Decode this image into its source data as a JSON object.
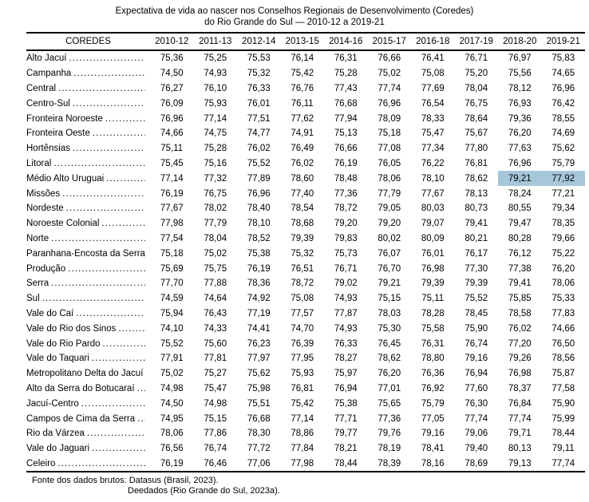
{
  "title": {
    "line1": "Expectativa de vida ao nascer nos Conselhos Regionais de Desenvolvimento (Coredes)",
    "line2": "do Rio Grande do Sul — 2010-12 a 2019-21"
  },
  "table": {
    "header": [
      "COREDES",
      "2010-12",
      "2011-13",
      "2012-14",
      "2013-15",
      "2014-16",
      "2015-17",
      "2016-18",
      "2017-19",
      "2018-20",
      "2019-21"
    ],
    "rows": [
      {
        "label": "Alto Jacuí",
        "values": [
          "75,36",
          "75,25",
          "75,53",
          "76,14",
          "76,31",
          "76,66",
          "76,41",
          "76,71",
          "76,97",
          "75,83"
        ]
      },
      {
        "label": "Campanha",
        "values": [
          "74,50",
          "74,93",
          "75,32",
          "75,42",
          "75,28",
          "75,02",
          "75,08",
          "75,20",
          "75,56",
          "74,65"
        ]
      },
      {
        "label": "Central",
        "values": [
          "76,27",
          "76,10",
          "76,33",
          "76,76",
          "77,43",
          "77,74",
          "77,69",
          "78,04",
          "78,12",
          "76,96"
        ]
      },
      {
        "label": "Centro-Sul",
        "values": [
          "76,09",
          "75,93",
          "76,01",
          "76,11",
          "76,68",
          "76,96",
          "76,54",
          "76,75",
          "76,93",
          "76,42"
        ]
      },
      {
        "label": "Fronteira Noroeste",
        "values": [
          "76,96",
          "77,14",
          "77,51",
          "77,62",
          "77,94",
          "78,09",
          "78,33",
          "78,64",
          "79,36",
          "78,55"
        ]
      },
      {
        "label": "Fronteira Oeste",
        "values": [
          "74,66",
          "74,75",
          "74,77",
          "74,91",
          "75,13",
          "75,18",
          "75,47",
          "75,67",
          "76,20",
          "74,69"
        ]
      },
      {
        "label": "Hortênsias",
        "values": [
          "75,11",
          "75,28",
          "76,02",
          "76,49",
          "76,66",
          "77,08",
          "77,34",
          "77,80",
          "77,63",
          "75,62"
        ]
      },
      {
        "label": "Litoral",
        "values": [
          "75,45",
          "75,16",
          "75,52",
          "76,02",
          "76,19",
          "76,05",
          "76,22",
          "76,81",
          "76,96",
          "75,79"
        ]
      },
      {
        "label": "Médio Alto Uruguai",
        "values": [
          "77,14",
          "77,32",
          "77,89",
          "78,60",
          "78,48",
          "78,06",
          "78,10",
          "78,62",
          "79,21",
          "77,92"
        ]
      },
      {
        "label": "Missões",
        "values": [
          "76,19",
          "76,75",
          "76,96",
          "77,40",
          "77,36",
          "77,79",
          "77,67",
          "78,13",
          "78,24",
          "77,21"
        ]
      },
      {
        "label": "Nordeste",
        "values": [
          "77,67",
          "78,02",
          "78,40",
          "78,54",
          "78,72",
          "79,05",
          "80,03",
          "80,73",
          "80,55",
          "79,34"
        ]
      },
      {
        "label": "Noroeste Colonial",
        "values": [
          "77,98",
          "77,79",
          "78,10",
          "78,68",
          "79,20",
          "79,20",
          "79,07",
          "79,41",
          "79,47",
          "78,35"
        ]
      },
      {
        "label": "Norte",
        "values": [
          "77,54",
          "78,04",
          "78,52",
          "79,39",
          "79,83",
          "80,02",
          "80,09",
          "80,21",
          "80,28",
          "79,66"
        ]
      },
      {
        "label": "Paranhana-Encosta da Serra",
        "values": [
          "75,18",
          "75,02",
          "75,38",
          "75,32",
          "75,73",
          "76,07",
          "76,01",
          "76,17",
          "76,12",
          "75,22"
        ]
      },
      {
        "label": "Produção",
        "values": [
          "75,69",
          "75,75",
          "76,19",
          "76,51",
          "76,71",
          "76,70",
          "76,98",
          "77,30",
          "77,38",
          "76,20"
        ]
      },
      {
        "label": "Serra",
        "values": [
          "77,70",
          "77,88",
          "78,36",
          "78,72",
          "79,02",
          "79,21",
          "79,39",
          "79,39",
          "79,41",
          "78,06"
        ]
      },
      {
        "label": "Sul",
        "values": [
          "74,59",
          "74,64",
          "74,92",
          "75,08",
          "74,93",
          "75,15",
          "75,11",
          "75,52",
          "75,85",
          "75,33"
        ]
      },
      {
        "label": "Vale do Caí",
        "values": [
          "75,94",
          "76,43",
          "77,19",
          "77,57",
          "77,87",
          "78,03",
          "78,28",
          "78,45",
          "78,58",
          "77,83"
        ]
      },
      {
        "label": "Vale do Rio dos Sinos",
        "values": [
          "74,10",
          "74,33",
          "74,41",
          "74,70",
          "74,93",
          "75,30",
          "75,58",
          "75,90",
          "76,02",
          "74,66"
        ]
      },
      {
        "label": "Vale do Rio Pardo",
        "values": [
          "75,52",
          "75,60",
          "76,23",
          "76,39",
          "76,33",
          "76,45",
          "76,31",
          "76,74",
          "77,20",
          "76,50"
        ]
      },
      {
        "label": "Vale do Taquari",
        "values": [
          "77,91",
          "77,81",
          "77,97",
          "77,95",
          "78,27",
          "78,62",
          "78,80",
          "79,16",
          "79,26",
          "78,56"
        ]
      },
      {
        "label": "Metropolitano Delta do Jacuí",
        "values": [
          "75,02",
          "75,27",
          "75,62",
          "75,93",
          "75,97",
          "76,20",
          "76,36",
          "76,94",
          "76,98",
          "75,87"
        ]
      },
      {
        "label": "Alto da Serra do Botucaraí",
        "values": [
          "74,98",
          "75,47",
          "75,98",
          "76,81",
          "76,94",
          "77,01",
          "76,92",
          "77,60",
          "78,37",
          "77,58"
        ]
      },
      {
        "label": "Jacuí-Centro",
        "values": [
          "74,50",
          "74,98",
          "75,51",
          "75,42",
          "75,38",
          "75,65",
          "75,79",
          "76,30",
          "76,84",
          "75,90"
        ]
      },
      {
        "label": "Campos de Cima da Serra",
        "values": [
          "74,95",
          "75,15",
          "76,68",
          "77,14",
          "77,71",
          "77,36",
          "77,05",
          "77,74",
          "77,74",
          "75,99"
        ]
      },
      {
        "label": "Rio da Várzea",
        "values": [
          "78,06",
          "77,86",
          "78,30",
          "78,86",
          "79,77",
          "79,76",
          "79,16",
          "79,06",
          "79,71",
          "78,44"
        ]
      },
      {
        "label": "Vale do Jaguari",
        "values": [
          "76,56",
          "76,74",
          "77,72",
          "77,84",
          "78,21",
          "78,19",
          "78,41",
          "79,40",
          "80,13",
          "79,11"
        ]
      },
      {
        "label": "Celeiro",
        "values": [
          "76,19",
          "76,46",
          "77,06",
          "77,98",
          "78,44",
          "78,39",
          "78,16",
          "78,69",
          "79,13",
          "77,74"
        ]
      }
    ],
    "highlight": {
      "row_index": 8,
      "col_indices": [
        8,
        9
      ],
      "color": "#a6c7da"
    }
  },
  "footnote": {
    "line1": "Fonte dos dados brutos: Datasus (Brasil, 2023).",
    "line2": "Deedados (Rio Grande do Sul, 2023a)."
  }
}
